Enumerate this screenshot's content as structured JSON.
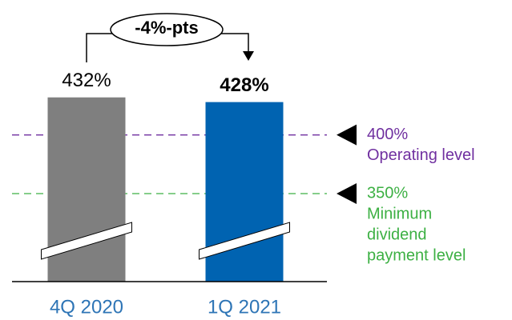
{
  "chart_data": {
    "type": "bar",
    "categories": [
      "4Q 2020",
      "1Q 2021"
    ],
    "values": [
      432,
      428
    ],
    "value_labels": [
      "432%",
      "428%"
    ],
    "colors": [
      "#7f7f7f",
      "#0063b1"
    ],
    "ylim": [
      275,
      440
    ],
    "reference_lines": [
      {
        "value": 400,
        "label": "400%",
        "description": [
          "Operating level"
        ],
        "color": "#7030a0"
      },
      {
        "value": 350,
        "label": "350%",
        "description": [
          "Minimum",
          "dividend",
          "payment level"
        ],
        "color": "#3cb043"
      }
    ],
    "annotation": "-4%-pts"
  }
}
